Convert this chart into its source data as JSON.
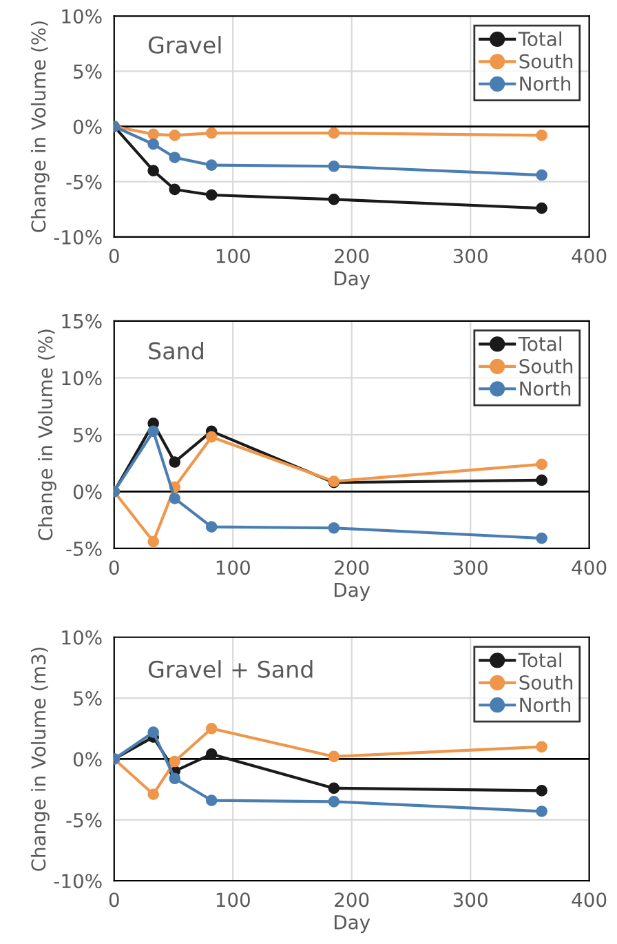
{
  "chart_data": [
    {
      "type": "line",
      "title": "Gravel",
      "xlabel": "Day",
      "ylabel": "Change in Volume (%)",
      "x": [
        0,
        33,
        51,
        82,
        185,
        360
      ],
      "series": [
        {
          "name": "Total",
          "color": "#1a1a1a",
          "values": [
            0,
            -4.0,
            -5.7,
            -6.2,
            -6.6,
            -7.4
          ]
        },
        {
          "name": "South",
          "color": "#f0964a",
          "values": [
            0,
            -0.7,
            -0.8,
            -0.6,
            -0.6,
            -0.8
          ]
        },
        {
          "name": "North",
          "color": "#4a7eb3",
          "values": [
            0,
            -1.6,
            -2.8,
            -3.5,
            -3.6,
            -4.4
          ]
        }
      ],
      "xlim": [
        0,
        400
      ],
      "xticks": [
        0,
        100,
        200,
        300,
        400
      ],
      "ylim": [
        -10,
        10
      ],
      "yticks": [
        {
          "value": -10,
          "label": "-10%"
        },
        {
          "value": -5,
          "label": "-5%"
        },
        {
          "value": 0,
          "label": "0%"
        },
        {
          "value": 5,
          "label": "5%"
        },
        {
          "value": 10,
          "label": "10%"
        }
      ],
      "ref_lines": [
        {
          "axis": "y",
          "value": 0,
          "color": "#000000"
        }
      ],
      "grid": true,
      "legend": "top right",
      "marker": "circle",
      "line_style": "solid"
    },
    {
      "type": "line",
      "title": "Sand",
      "xlabel": "Day",
      "ylabel": "Change in Volume (%)",
      "x": [
        0,
        33,
        51,
        82,
        185,
        360
      ],
      "series": [
        {
          "name": "Total",
          "color": "#1a1a1a",
          "values": [
            0,
            6.0,
            2.6,
            5.3,
            0.8,
            1.0
          ]
        },
        {
          "name": "South",
          "color": "#f0964a",
          "values": [
            0,
            -4.4,
            0.4,
            4.8,
            0.9,
            2.4
          ]
        },
        {
          "name": "North",
          "color": "#4a7eb3",
          "values": [
            0,
            5.3,
            -0.6,
            -3.1,
            -3.2,
            -4.1
          ]
        }
      ],
      "xlim": [
        0,
        400
      ],
      "xticks": [
        0,
        100,
        200,
        300,
        400
      ],
      "ylim": [
        -5,
        15
      ],
      "yticks": [
        {
          "value": -5,
          "label": "-5%"
        },
        {
          "value": 0,
          "label": "0%"
        },
        {
          "value": 5,
          "label": "5%"
        },
        {
          "value": 10,
          "label": "10%"
        },
        {
          "value": 15,
          "label": "15%"
        }
      ],
      "ref_lines": [
        {
          "axis": "y",
          "value": 0,
          "color": "#000000"
        }
      ],
      "grid": true,
      "legend": "top right",
      "marker": "circle",
      "line_style": "solid"
    },
    {
      "type": "line",
      "title": "Gravel + Sand",
      "xlabel": "Day",
      "ylabel": "Change in Volume (m3)",
      "x": [
        0,
        33,
        51,
        82,
        185,
        360
      ],
      "series": [
        {
          "name": "Total",
          "color": "#1a1a1a",
          "values": [
            0,
            1.8,
            -1.0,
            0.4,
            -2.4,
            -2.6
          ]
        },
        {
          "name": "South",
          "color": "#f0964a",
          "values": [
            0,
            -2.9,
            -0.2,
            2.5,
            0.2,
            1.0
          ]
        },
        {
          "name": "North",
          "color": "#4a7eb3",
          "values": [
            0,
            2.2,
            -1.6,
            -3.4,
            -3.5,
            -4.3
          ]
        }
      ],
      "xlim": [
        0,
        400
      ],
      "xticks": [
        0,
        100,
        200,
        300,
        400
      ],
      "ylim": [
        -10,
        10
      ],
      "yticks": [
        {
          "value": -10,
          "label": "-10%"
        },
        {
          "value": -5,
          "label": "-5%"
        },
        {
          "value": 0,
          "label": "0%"
        },
        {
          "value": 5,
          "label": "5%"
        },
        {
          "value": 10,
          "label": "10%"
        }
      ],
      "ref_lines": [
        {
          "axis": "y",
          "value": 0,
          "color": "#000000"
        }
      ],
      "grid": true,
      "legend": "top right",
      "marker": "circle",
      "line_style": "solid"
    }
  ]
}
